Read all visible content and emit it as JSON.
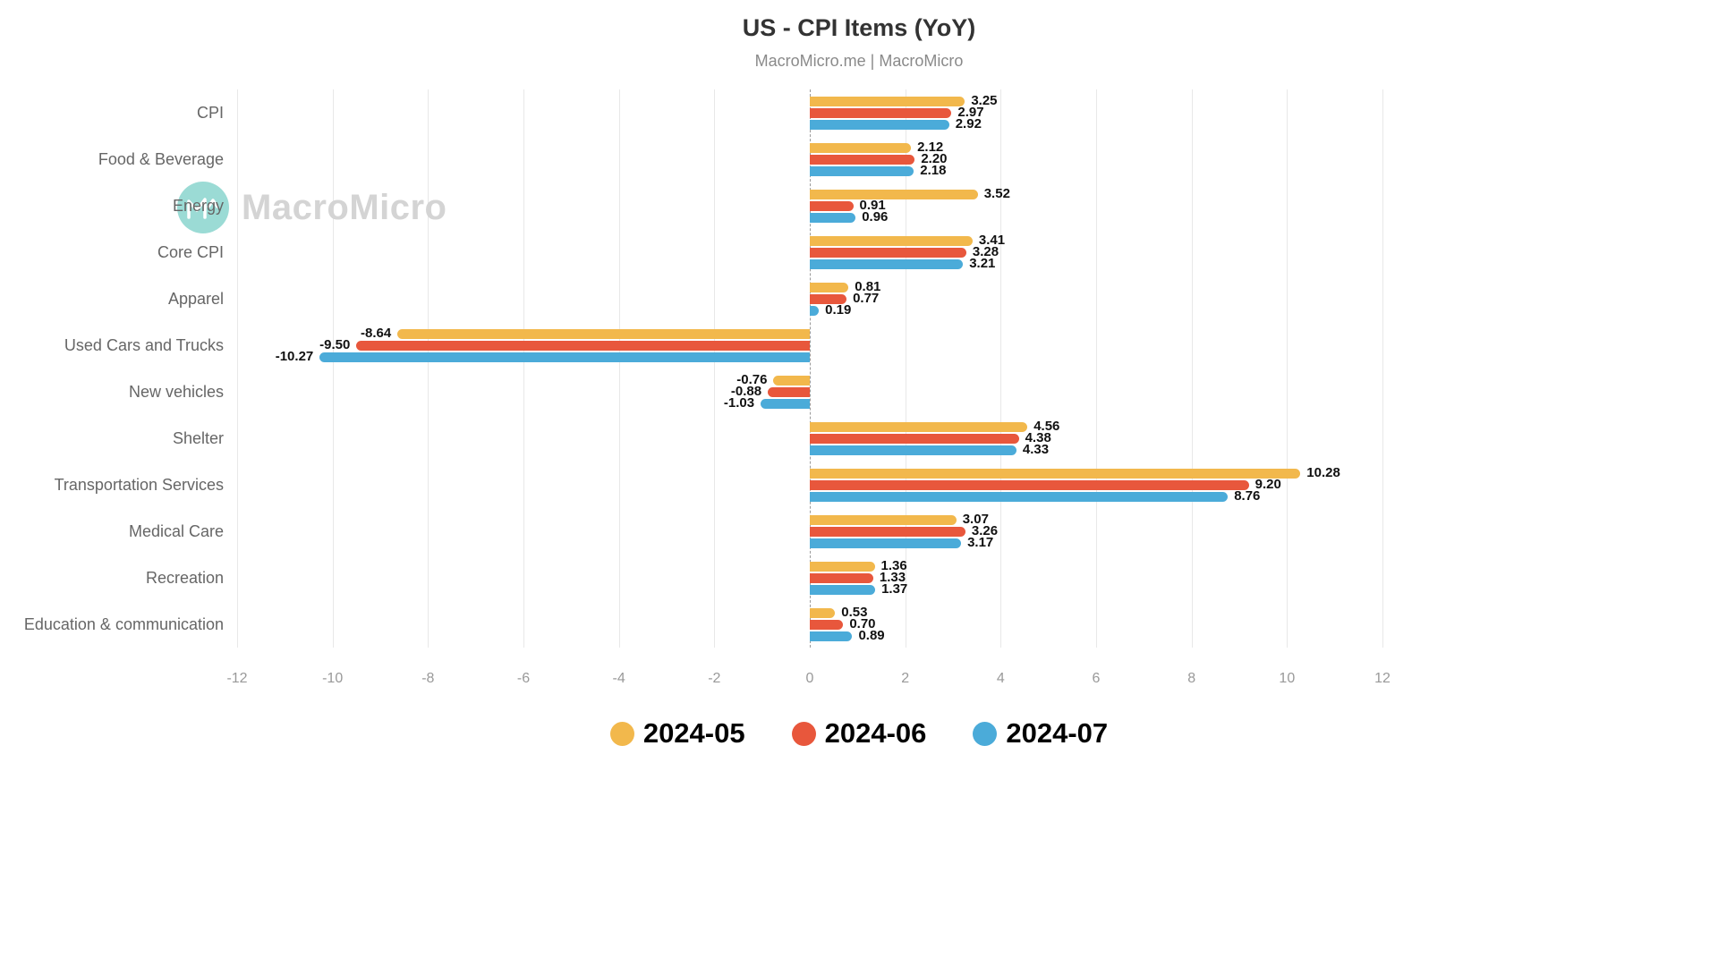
{
  "title": "US - CPI Items (YoY)",
  "subtitle": "MacroMicro.me | MacroMicro",
  "watermark": {
    "text": "MacroMicro",
    "logo_color": "#48beb2"
  },
  "chart_data": {
    "type": "bar",
    "orientation": "horizontal",
    "title": "US - CPI Items (YoY)",
    "subtitle": "MacroMicro.me | MacroMicro",
    "xlabel": "",
    "ylabel": "",
    "xlim": [
      -12,
      12
    ],
    "xticks": [
      -12,
      -10,
      -8,
      -6,
      -4,
      -2,
      0,
      2,
      4,
      6,
      8,
      10,
      12
    ],
    "grid": true,
    "zero_line": "dashed",
    "legend_position": "bottom",
    "value_label_decimals": 2,
    "categories": [
      "CPI",
      "Food & Beverage",
      "Energy",
      "Core CPI",
      "Apparel",
      "Used Cars and Trucks",
      "New vehicles",
      "Shelter",
      "Transportation Services",
      "Medical Care",
      "Recreation",
      "Education & communication"
    ],
    "series": [
      {
        "name": "2024-05",
        "color": "#F2B84C",
        "values": [
          3.25,
          2.12,
          3.52,
          3.41,
          0.81,
          -8.64,
          -0.76,
          4.56,
          10.28,
          3.07,
          1.36,
          0.53
        ]
      },
      {
        "name": "2024-06",
        "color": "#E8573C",
        "values": [
          2.97,
          2.2,
          0.91,
          3.28,
          0.77,
          -9.5,
          -0.88,
          4.38,
          9.2,
          3.26,
          1.33,
          0.7
        ]
      },
      {
        "name": "2024-07",
        "color": "#4BABD9",
        "values": [
          2.92,
          2.18,
          0.96,
          3.21,
          0.19,
          -10.27,
          -1.03,
          4.33,
          8.76,
          3.17,
          1.37,
          0.89
        ]
      }
    ]
  }
}
